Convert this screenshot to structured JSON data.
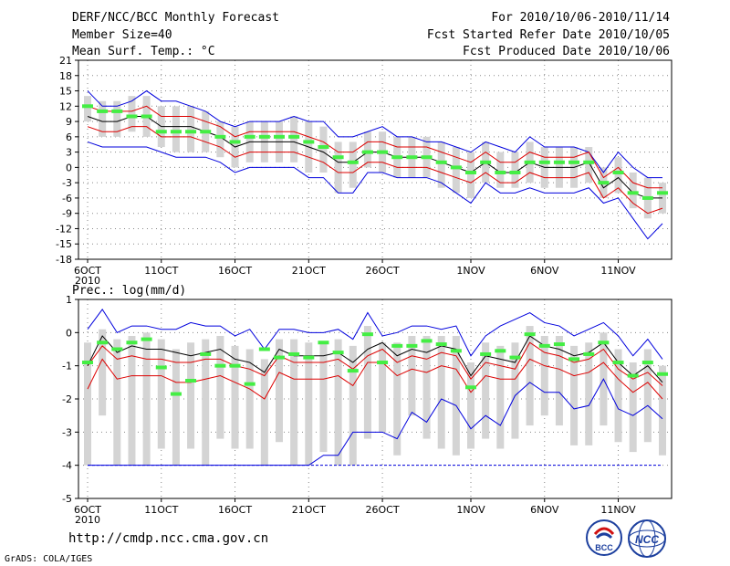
{
  "header": {
    "title": "DERF/NCC/BCC Monthly Forecast",
    "member_size": "Member Size=40",
    "variable": "Mean Surf. Temp.: °C",
    "period": "For 2010/10/06-2010/11/14",
    "started": "Fcst Started Refer Date 2010/10/05",
    "produced": "Fcst Produced Date 2010/10/06"
  },
  "footer": {
    "url": "http://cmdp.ncc.cma.gov.cn",
    "grads": "GrADS: COLA/IGES",
    "logo_bcc": "BCC",
    "logo_ncc": "NCC"
  },
  "colors": {
    "grey_bar": "#d4d4d4",
    "green": "#44ee44",
    "blue": "#0000dd",
    "red": "#dd0000",
    "black": "#000000"
  },
  "chart_data": [
    {
      "type": "line",
      "title": "Mean Surf. Temp.: °C",
      "x_labels": [
        "6OCT",
        "11OCT",
        "16OCT",
        "21OCT",
        "26OCT",
        "1NOV",
        "6NOV",
        "11NOV"
      ],
      "x_label_day_index": [
        0,
        5,
        10,
        15,
        20,
        26,
        31,
        36
      ],
      "year_label": "2010",
      "ylim": [
        -18,
        21
      ],
      "yticks": [
        -18,
        -15,
        -12,
        -9,
        -6,
        -3,
        0,
        3,
        6,
        9,
        12,
        15,
        18,
        21
      ],
      "days": 39,
      "ensemble_mean": [
        10,
        9,
        9,
        10,
        10,
        8,
        8,
        8,
        7,
        6,
        4,
        5,
        5,
        5,
        5,
        4,
        3,
        1,
        1,
        3,
        3,
        2,
        2,
        2,
        1,
        0,
        -1,
        1,
        -1,
        -1,
        1,
        0,
        0,
        0,
        1,
        -4,
        -2,
        -5,
        -6,
        -6
      ],
      "upper_band": [
        15,
        12,
        12,
        13,
        15,
        13,
        13,
        12,
        11,
        9,
        8,
        9,
        9,
        9,
        10,
        9,
        9,
        6,
        6,
        7,
        8,
        6,
        6,
        5,
        5,
        4,
        3,
        5,
        4,
        3,
        6,
        4,
        4,
        4,
        3,
        -1,
        3,
        0,
        -2,
        -2
      ],
      "lower_band": [
        5,
        4,
        4,
        4,
        4,
        3,
        2,
        2,
        2,
        1,
        -1,
        0,
        0,
        0,
        0,
        -2,
        -2,
        -5,
        -5,
        -1,
        -1,
        -2,
        -2,
        -2,
        -3,
        -5,
        -7,
        -3,
        -5,
        -5,
        -4,
        -5,
        -5,
        -5,
        -4,
        -7,
        -6,
        -10,
        -14,
        -11
      ],
      "pct_upper": [
        12,
        11,
        11,
        11,
        12,
        10,
        10,
        10,
        9,
        8,
        6,
        7,
        7,
        7,
        7,
        6,
        5,
        3,
        3,
        5,
        5,
        4,
        4,
        4,
        3,
        2,
        1,
        3,
        1,
        1,
        3,
        2,
        2,
        2,
        3,
        -2,
        0,
        -3,
        -4,
        -4
      ],
      "pct_lower": [
        8,
        7,
        7,
        8,
        8,
        6,
        6,
        6,
        5,
        4,
        2,
        3,
        3,
        3,
        3,
        2,
        1,
        -1,
        -1,
        1,
        1,
        0,
        0,
        0,
        -1,
        -2,
        -3,
        -1,
        -3,
        -3,
        -1,
        -2,
        -2,
        -2,
        -1,
        -6,
        -4,
        -7,
        -9,
        -8
      ],
      "obs_markers": [
        12,
        11,
        11,
        10,
        10,
        7,
        7,
        7,
        7,
        6,
        5,
        6,
        6,
        6,
        6,
        5,
        4,
        2,
        1,
        3,
        3,
        2,
        2,
        2,
        1,
        0,
        -1,
        1,
        -1,
        -1,
        1,
        1,
        1,
        1,
        1,
        -3,
        -1,
        -5,
        -6,
        -5
      ],
      "box_top": [
        14,
        13,
        13,
        14,
        14,
        12,
        12,
        12,
        11,
        9,
        8,
        9,
        9,
        9,
        10,
        9,
        8,
        5,
        5,
        7,
        7,
        6,
        6,
        6,
        5,
        4,
        3,
        5,
        3,
        3,
        5,
        4,
        4,
        4,
        4,
        0,
        2,
        -1,
        -2,
        -3
      ],
      "box_bottom": [
        9,
        6,
        6,
        7,
        6,
        4,
        3,
        3,
        3,
        2,
        0,
        1,
        1,
        1,
        1,
        -1,
        -1,
        -5,
        -4,
        0,
        -1,
        -2,
        -2,
        -2,
        -4,
        -5,
        -6,
        -3,
        -4,
        -4,
        -3,
        -4,
        -4,
        -4,
        -3,
        -6,
        -5,
        -8,
        -10,
        -9
      ]
    },
    {
      "type": "line",
      "title": "Prec.: log(mm/d)",
      "x_labels": [
        "6OCT",
        "11OCT",
        "16OCT",
        "21OCT",
        "26OCT",
        "1NOV",
        "6NOV",
        "11NOV"
      ],
      "x_label_day_index": [
        0,
        5,
        10,
        15,
        20,
        26,
        31,
        36
      ],
      "year_label": "2010",
      "ylim": [
        -5,
        1
      ],
      "yticks": [
        -5,
        -4,
        -3,
        -2,
        -1,
        0,
        1
      ],
      "days": 39,
      "ensemble_mean": [
        -1,
        -0.1,
        -0.6,
        -0.4,
        -0.5,
        -0.5,
        -0.6,
        -0.7,
        -0.6,
        -0.5,
        -0.8,
        -0.9,
        -1.2,
        -0.5,
        -0.7,
        -0.7,
        -0.7,
        -0.6,
        -0.9,
        -0.5,
        -0.3,
        -0.7,
        -0.5,
        -0.6,
        -0.4,
        -0.5,
        -1.3,
        -0.7,
        -0.8,
        -0.9,
        -0.1,
        -0.4,
        -0.5,
        -0.7,
        -0.6,
        -0.3,
        -0.9,
        -1.3,
        -1.0,
        -1.5
      ],
      "upper_band": [
        0.1,
        0.7,
        0,
        0.2,
        0.2,
        0.1,
        0.1,
        0.3,
        0.2,
        0.2,
        -0.1,
        0.1,
        -0.5,
        0.1,
        0.1,
        0,
        0,
        0.1,
        -0.2,
        0.6,
        -0.1,
        0,
        0.2,
        0.2,
        0.1,
        0.2,
        -0.7,
        -0.1,
        0.2,
        0.4,
        0.6,
        0.3,
        0.2,
        -0.1,
        0.1,
        0.3,
        -0.1,
        -0.7,
        -0.2,
        -0.8
      ],
      "lower_band": [
        -4,
        -4,
        -4,
        -4,
        -4,
        -4,
        -4,
        -4,
        -4,
        -4,
        -4,
        -4,
        -4,
        -4,
        -4,
        -4,
        -3.7,
        -3.7,
        -3,
        -3,
        -3,
        -3.2,
        -2.4,
        -2.7,
        -2,
        -2.2,
        -2.9,
        -2.5,
        -2.8,
        -1.9,
        -1.5,
        -1.8,
        -1.8,
        -2.3,
        -2.2,
        -1.4,
        -2.3,
        -2.5,
        -2.2,
        -2.6
      ],
      "pct_upper": [
        -1,
        -0.4,
        -0.8,
        -0.7,
        -0.8,
        -0.8,
        -0.9,
        -0.9,
        -0.8,
        -0.8,
        -1.0,
        -1.1,
        -1.3,
        -0.7,
        -0.9,
        -0.9,
        -0.9,
        -0.8,
        -1.1,
        -0.7,
        -0.5,
        -0.9,
        -0.7,
        -0.8,
        -0.6,
        -0.7,
        -1.4,
        -0.9,
        -1.0,
        -1.1,
        -0.3,
        -0.6,
        -0.7,
        -0.9,
        -0.8,
        -0.5,
        -1.1,
        -1.4,
        -1.2,
        -1.6
      ],
      "pct_lower": [
        -1.7,
        -0.8,
        -1.4,
        -1.3,
        -1.3,
        -1.3,
        -1.5,
        -1.5,
        -1.4,
        -1.3,
        -1.5,
        -1.7,
        -2.0,
        -1.2,
        -1.4,
        -1.4,
        -1.4,
        -1.3,
        -1.6,
        -0.9,
        -0.9,
        -1.3,
        -1.1,
        -1.2,
        -1.0,
        -1.1,
        -1.8,
        -1.3,
        -1.4,
        -1.4,
        -0.8,
        -1.0,
        -1.1,
        -1.3,
        -1.2,
        -0.9,
        -1.4,
        -1.8,
        -1.5,
        -2.0
      ],
      "obs_markers": [
        -0.9,
        -0.3,
        -0.5,
        -0.3,
        -0.2,
        -1.05,
        -1.85,
        -1.45,
        -0.65,
        -1.0,
        -1.0,
        -1.55,
        -0.5,
        -0.75,
        -0.65,
        -0.75,
        -0.3,
        -0.6,
        -1.15,
        -0.05,
        -0.9,
        -0.4,
        -0.4,
        -0.25,
        -0.35,
        -0.55,
        -1.65,
        -0.65,
        -0.55,
        -0.75,
        -0.05,
        -0.4,
        -0.35,
        -0.8,
        -0.65,
        -0.3,
        -0.9,
        -1.3,
        -0.9,
        -1.25
      ],
      "box_top": [
        -0.3,
        0.1,
        -0.2,
        -0.1,
        0,
        -0.2,
        -0.5,
        -0.3,
        -0.2,
        -0.1,
        -0.4,
        -0.5,
        -0.8,
        -0.2,
        -0.2,
        -0.3,
        -0.3,
        -0.2,
        -0.4,
        0.2,
        -0.3,
        -0.3,
        -0.1,
        -0.1,
        -0.1,
        -0.1,
        -0.9,
        -0.3,
        -0.4,
        -0.3,
        0.2,
        -0.1,
        -0.1,
        -0.4,
        -0.3,
        0,
        -0.5,
        -0.9,
        -0.5,
        -1.0
      ],
      "box_bottom": [
        -4,
        -2.5,
        -4,
        -4,
        -4,
        -3.5,
        -4,
        -3.5,
        -4,
        -3.2,
        -3.5,
        -3.5,
        -4,
        -3.3,
        -4,
        -4,
        -3.6,
        -4,
        -4,
        -3.2,
        -3,
        -3.7,
        -2.5,
        -3.2,
        -3.5,
        -3.7,
        -3.5,
        -3.2,
        -3.5,
        -3.2,
        -2.8,
        -2.5,
        -2.8,
        -3.4,
        -3.4,
        -2.8,
        -3.3,
        -3.6,
        -3.3,
        -3.7
      ]
    }
  ]
}
